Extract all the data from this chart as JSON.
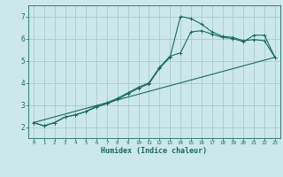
{
  "title": "",
  "xlabel": "Humidex (Indice chaleur)",
  "bg_color": "#cce8e8",
  "grid_color": "#aacccc",
  "line_color": "#1a6b5a",
  "xlim": [
    -0.5,
    23.5
  ],
  "ylim": [
    1.5,
    7.5
  ],
  "xticks": [
    0,
    1,
    2,
    3,
    4,
    5,
    6,
    7,
    8,
    9,
    10,
    11,
    12,
    13,
    14,
    15,
    16,
    17,
    18,
    19,
    20,
    21,
    22,
    23
  ],
  "yticks": [
    2,
    3,
    4,
    5,
    6,
    7
  ],
  "line1_x": [
    0,
    1,
    2,
    3,
    4,
    5,
    6,
    7,
    8,
    9,
    10,
    11,
    12,
    13,
    14,
    15,
    16,
    17,
    18,
    19,
    20,
    21,
    22,
    23
  ],
  "line1_y": [
    2.2,
    2.05,
    2.2,
    2.45,
    2.55,
    2.7,
    2.95,
    3.1,
    3.3,
    3.55,
    3.8,
    4.0,
    4.7,
    5.2,
    5.35,
    6.3,
    6.35,
    6.2,
    6.05,
    6.0,
    5.85,
    6.15,
    6.15,
    5.15
  ],
  "line2_x": [
    0,
    1,
    2,
    3,
    4,
    5,
    6,
    7,
    8,
    9,
    10,
    11,
    12,
    13,
    14,
    15,
    16,
    17,
    18,
    19,
    20,
    21,
    22,
    23
  ],
  "line2_y": [
    2.2,
    2.05,
    2.2,
    2.45,
    2.55,
    2.7,
    2.9,
    3.05,
    3.25,
    3.5,
    3.75,
    3.95,
    4.65,
    5.15,
    7.0,
    6.9,
    6.65,
    6.3,
    6.1,
    6.05,
    5.9,
    5.95,
    5.9,
    5.15
  ],
  "line3_x": [
    0,
    23
  ],
  "line3_y": [
    2.2,
    5.15
  ]
}
